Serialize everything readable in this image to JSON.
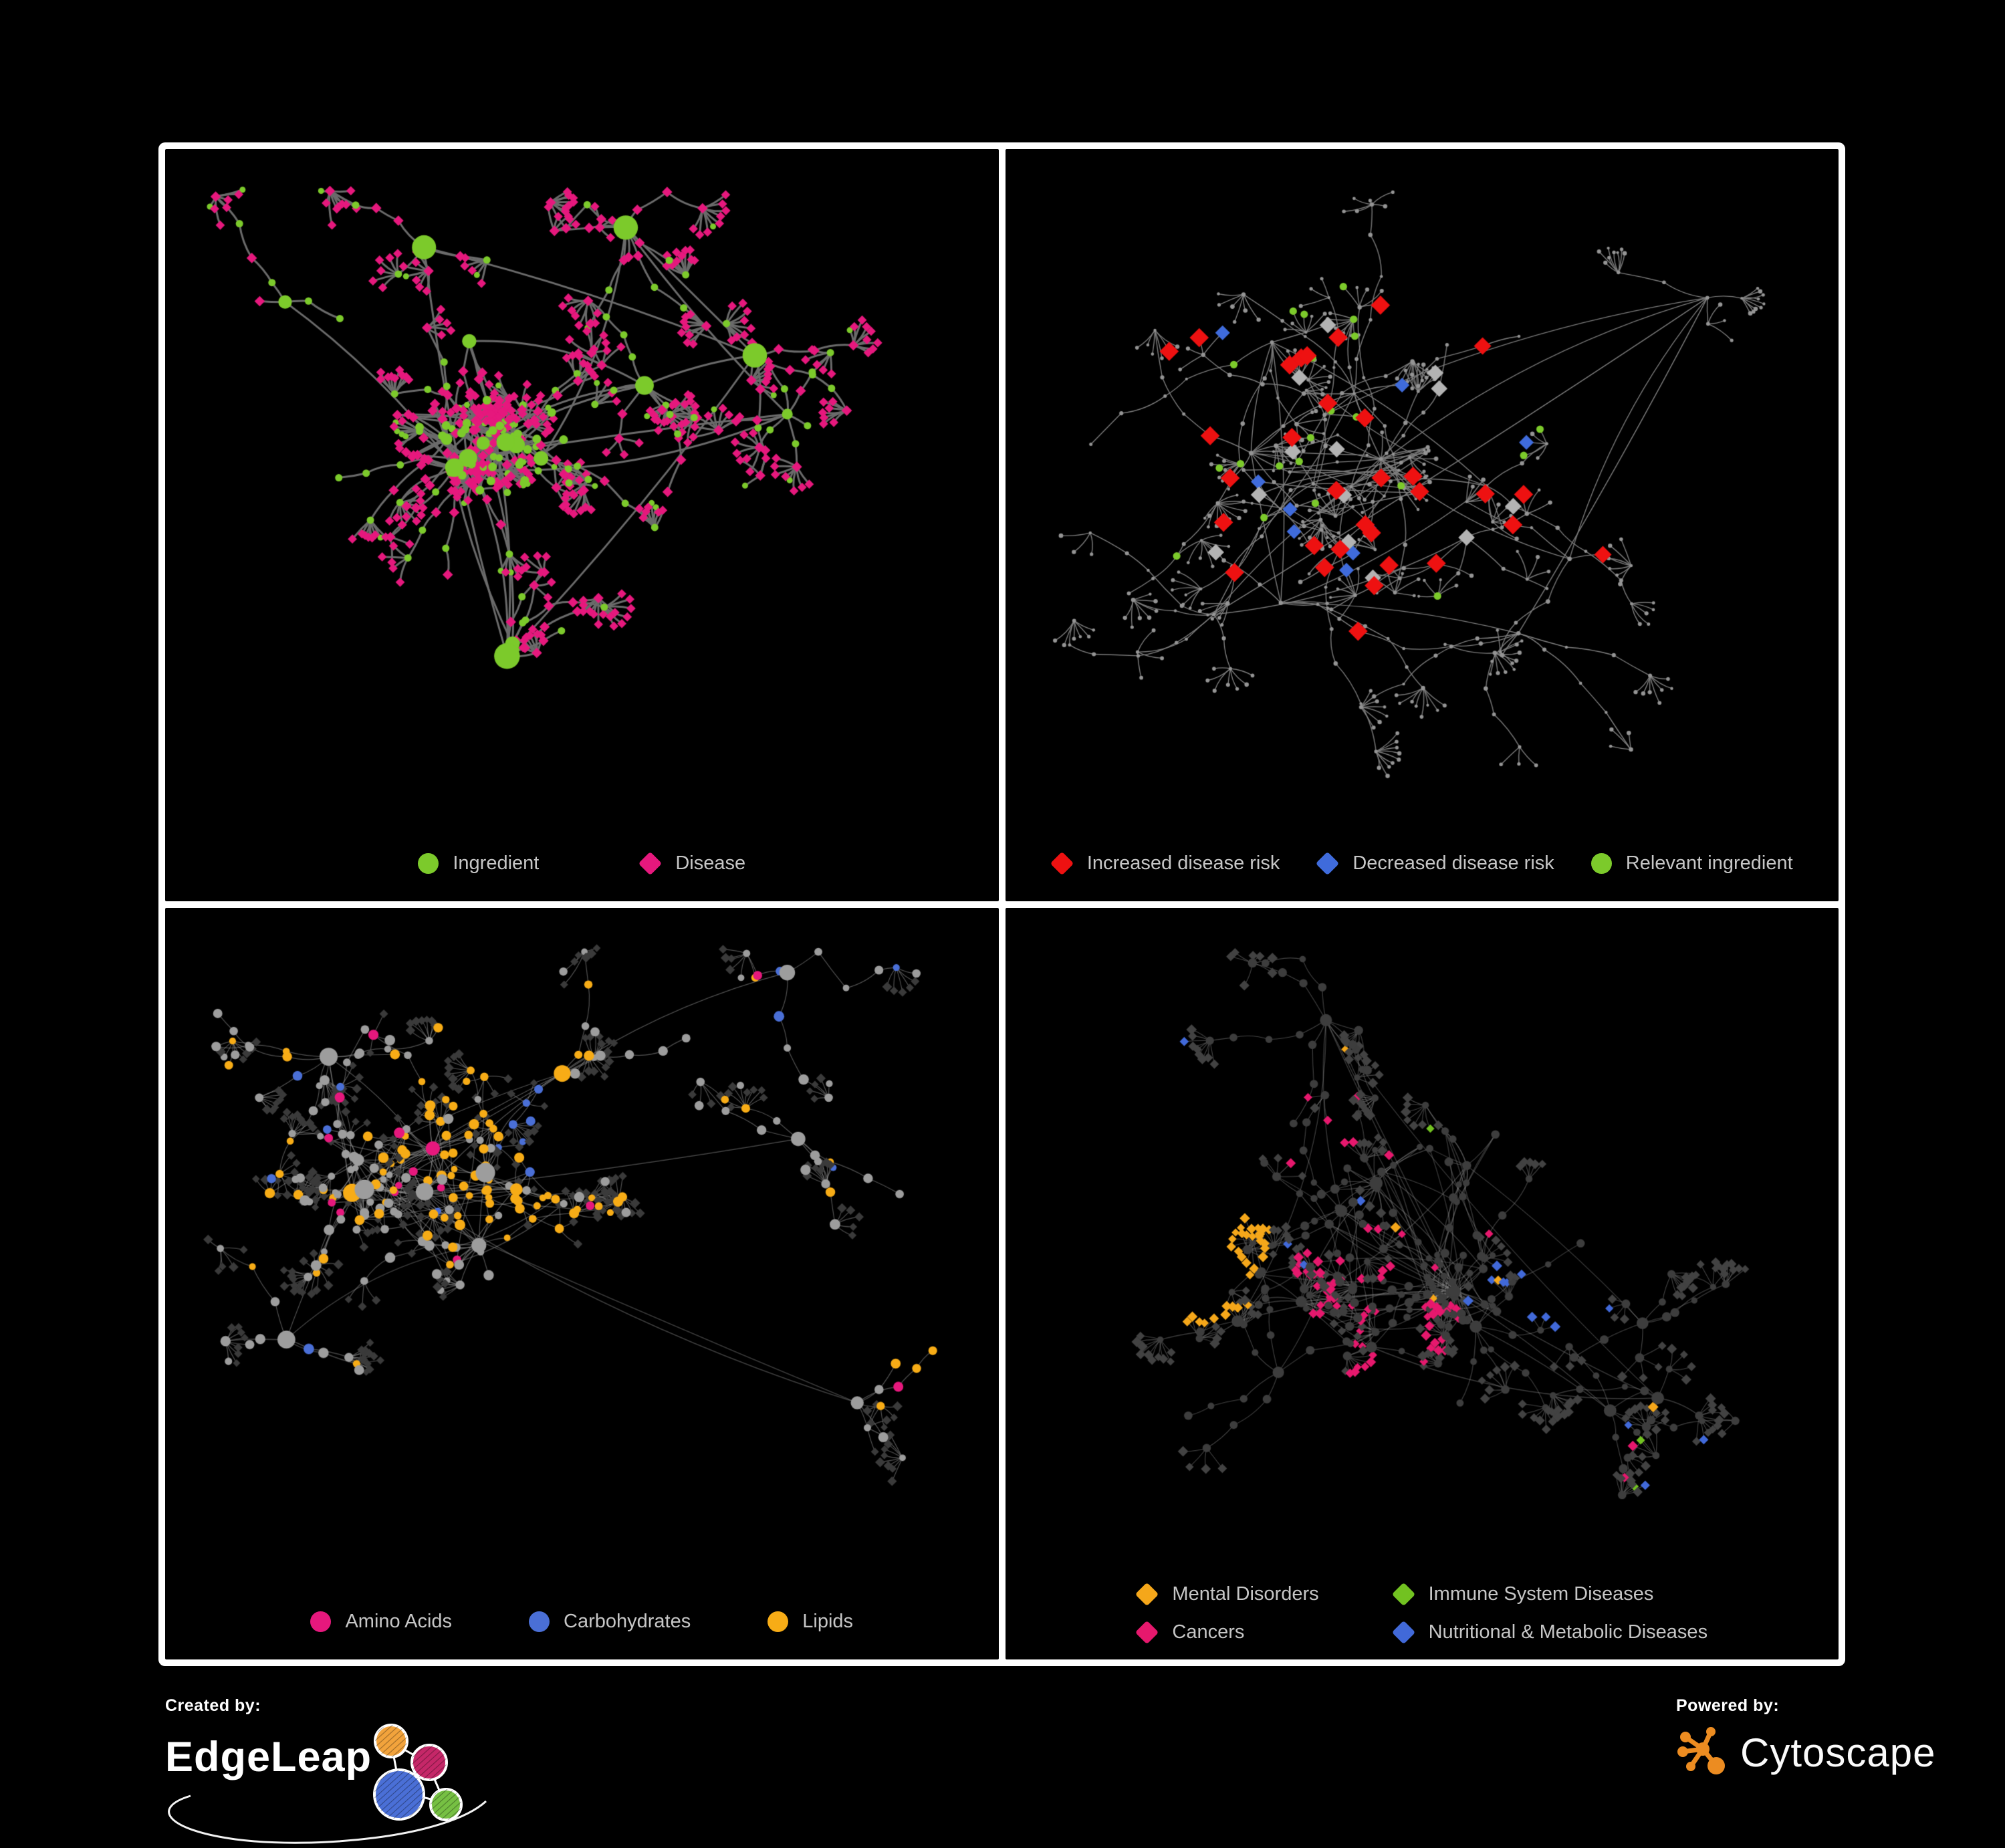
{
  "page": {
    "background": "#000000",
    "frame_color": "#ffffff"
  },
  "panels": [
    {
      "id": "ingredient-disease-network",
      "legend": {
        "layout": "row",
        "gap": 150,
        "items": [
          {
            "label": "Ingredient",
            "shape": "circle",
            "color": "#7cca2b"
          },
          {
            "label": "Disease",
            "shape": "diamond",
            "color": "#e6187d"
          }
        ]
      }
    },
    {
      "id": "disease-risk-network",
      "legend": {
        "layout": "row",
        "gap": 55,
        "items": [
          {
            "label": "Increased disease risk",
            "shape": "diamond",
            "color": "#ee1111"
          },
          {
            "label": "Decreased disease risk",
            "shape": "diamond",
            "color": "#3f6bdb"
          },
          {
            "label": "Relevant ingredient",
            "shape": "circle",
            "color": "#7cca2b"
          }
        ]
      }
    },
    {
      "id": "nutrient-class-network",
      "legend": {
        "layout": "row",
        "gap": 115,
        "items": [
          {
            "label": "Amino Acids",
            "shape": "circle",
            "color": "#e6187d"
          },
          {
            "label": "Carbohydrates",
            "shape": "circle",
            "color": "#4a6fd6"
          },
          {
            "label": "Lipids",
            "shape": "circle",
            "color": "#f7ac16"
          }
        ]
      }
    },
    {
      "id": "disease-class-network",
      "legend": {
        "layout": "grid",
        "items": [
          {
            "label": "Mental Disorders",
            "shape": "diamond",
            "color": "#f5a71a"
          },
          {
            "label": "Immune System Diseases",
            "shape": "diamond",
            "color": "#72c221"
          },
          {
            "label": "Cancers",
            "shape": "diamond",
            "color": "#e6186d"
          },
          {
            "label": "Nutritional & Metabolic Diseases",
            "shape": "diamond",
            "color": "#4169d9"
          }
        ]
      }
    }
  ],
  "network_style": {
    "p1_edge": "#6b6b6b",
    "p2_edge": "#7d7d7d",
    "p2_dot": "#949494",
    "p2_gray_diamond": "#b3b3b3",
    "p3_edge": "rgba(160,160,160,0.5)",
    "p3_gray_circle": "#9d9d9d",
    "p3_dark_diamond": "#3a3a3a",
    "p4_edge": "rgba(150,150,150,0.45)",
    "p4_dark_circle": "#3d3d3d",
    "p4_dark_diamond": "#424242"
  },
  "footer": {
    "created_by_label": "Created by:",
    "created_by_brand": "EdgeLeap",
    "powered_by_label": "Powered by:",
    "powered_by_brand": "Cytoscape",
    "edgeleap_colors": {
      "orange": "#f2a33c",
      "magenta": "#c52768",
      "blue": "#4a6fd6",
      "green": "#76c043"
    },
    "cytoscape_color": "#ec8c21"
  }
}
